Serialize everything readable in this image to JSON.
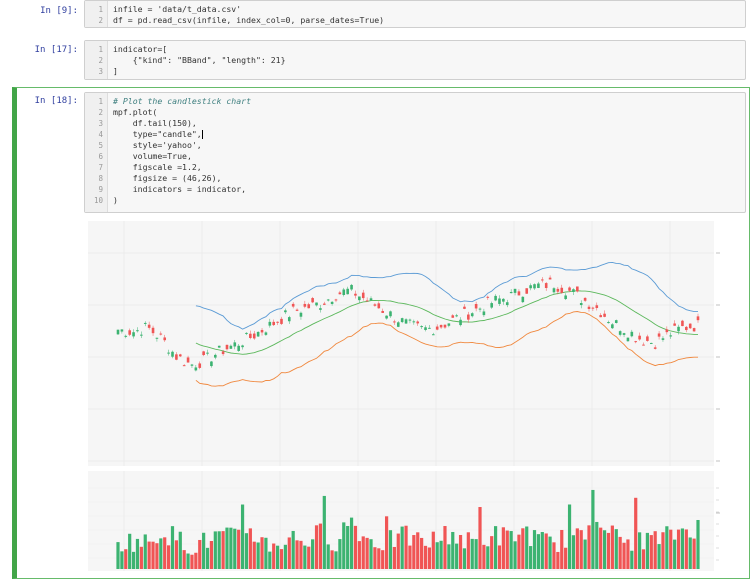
{
  "cells": [
    {
      "prompt": "In [9]:",
      "lines": [
        {
          "n": "1",
          "text": "infile = 'data/t_data.csv'"
        },
        {
          "n": "2",
          "text": "df = pd.read_csv(infile, index_col=0, parse_dates=True)"
        }
      ]
    },
    {
      "prompt": "In [17]:",
      "lines": [
        {
          "n": "1",
          "text": "indicator=["
        },
        {
          "n": "2",
          "text": "    {\"kind\": \"BBand\", \"length\": 21}"
        },
        {
          "n": "3",
          "text": "]"
        }
      ]
    },
    {
      "prompt": "In [18]:",
      "lines": [
        {
          "n": "1",
          "text": "# Plot the candlestick chart"
        },
        {
          "n": "2",
          "text": "mpf.plot("
        },
        {
          "n": "3",
          "text": "    df.tail(150),"
        },
        {
          "n": "4",
          "text": "    type=\"candle\","
        },
        {
          "n": "5",
          "text": "    style='yahoo',"
        },
        {
          "n": "6",
          "text": "    volume=True,"
        },
        {
          "n": "7",
          "text": "    figscale =1.2,"
        },
        {
          "n": "8",
          "text": "    figsize = (46,26),"
        },
        {
          "n": "9",
          "text": "    indicators = indicator,"
        },
        {
          "n": "10",
          "text": ")"
        }
      ]
    }
  ],
  "colors": {
    "up": "#3cb371",
    "down": "#f05555",
    "upper_band": "#5b9bd5",
    "middle_band": "#5cb85c",
    "lower_band": "#f0883e"
  },
  "chart_data": {
    "type": "candlestick",
    "series": [
      {
        "name": "",
        "kind": "upper_band"
      },
      {
        "name": "",
        "kind": "middle_band"
      },
      {
        "name": "",
        "kind": "lower_band"
      }
    ],
    "price_trend": [
      0.62,
      0.61,
      0.63,
      0.58,
      0.5,
      0.46,
      0.48,
      0.52,
      0.55,
      0.58,
      0.62,
      0.66,
      0.7,
      0.72,
      0.74,
      0.78,
      0.8,
      0.76,
      0.72,
      0.68,
      0.64,
      0.62,
      0.63,
      0.66,
      0.69,
      0.72,
      0.75,
      0.77,
      0.8,
      0.82,
      0.83,
      0.8,
      0.76,
      0.72,
      0.66,
      0.62,
      0.58,
      0.56,
      0.6,
      0.63,
      0.64
    ],
    "volume_trend": [
      0.3,
      0.35,
      0.28,
      0.55,
      0.4,
      0.25,
      0.32,
      0.45,
      0.38,
      0.6,
      0.3,
      0.28,
      0.42,
      0.35,
      0.5,
      0.33,
      0.8,
      0.4,
      0.3,
      0.36,
      0.44,
      0.29,
      0.38,
      0.52,
      0.31,
      0.34,
      0.47,
      0.39,
      0.56,
      0.33,
      0.3,
      0.41,
      0.37,
      0.95,
      0.48,
      0.32,
      0.4,
      0.36,
      0.44,
      0.58,
      0.62
    ]
  }
}
